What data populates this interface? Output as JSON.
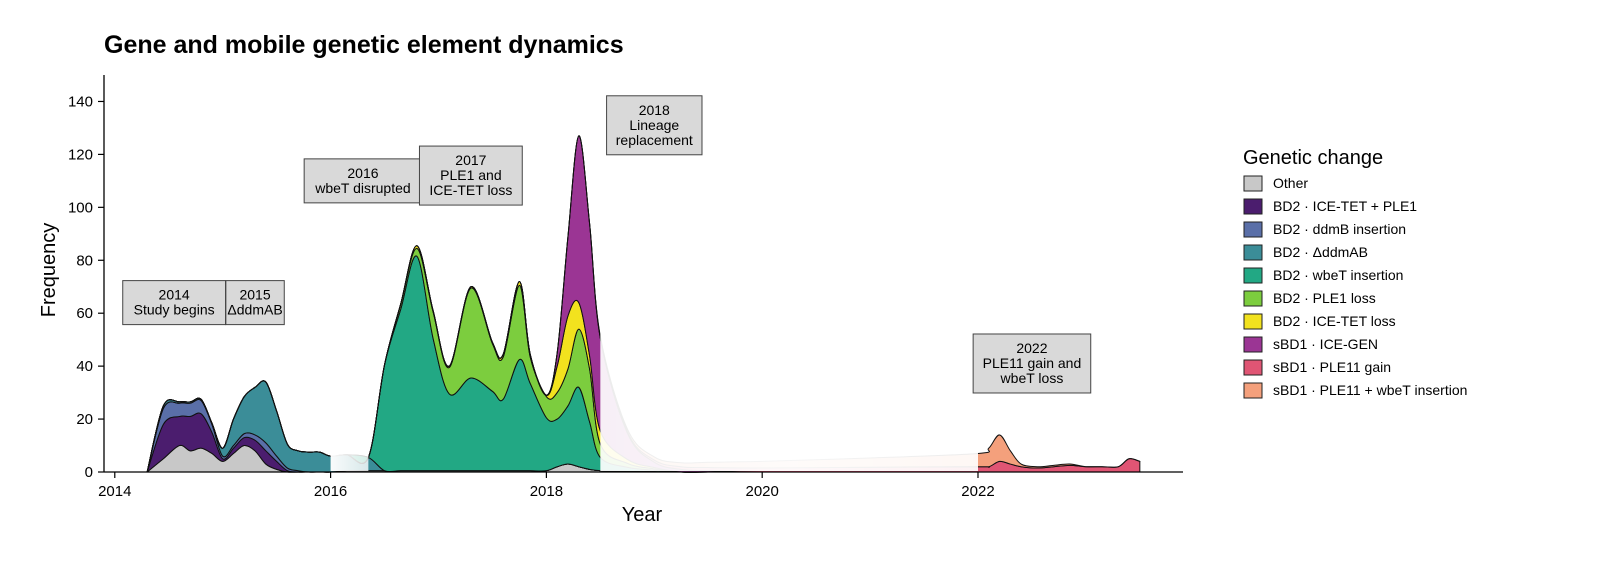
{
  "chart_data": {
    "type": "area",
    "title": "Gene and mobile genetic element dynamics",
    "xlabel": "Year",
    "ylabel": "Frequency",
    "xlim": [
      2013.9,
      2023.9
    ],
    "ylim": [
      0,
      150
    ],
    "x_ticks": [
      2014,
      2016,
      2018,
      2020,
      2022
    ],
    "y_ticks": [
      0,
      20,
      40,
      60,
      80,
      100,
      120,
      140
    ],
    "grid": false,
    "legend_title": "Genetic change",
    "legend_position": "right",
    "stacking": "stacked",
    "x": [
      2014.3,
      2014.45,
      2014.6,
      2014.7,
      2014.8,
      2014.9,
      2015.0,
      2015.1,
      2015.2,
      2015.3,
      2015.4,
      2015.5,
      2015.6,
      2015.7,
      2015.8,
      2015.9,
      2016.0,
      2016.15,
      2016.35,
      2016.5,
      2016.65,
      2016.8,
      2016.95,
      2017.1,
      2017.3,
      2017.5,
      2017.6,
      2017.75,
      2017.85,
      2018.0,
      2018.1,
      2018.2,
      2018.3,
      2018.4,
      2018.5,
      2018.75,
      2019.0,
      2019.25,
      2019.5,
      2020.0,
      2021.0,
      2022.0,
      2022.1,
      2022.2,
      2022.3,
      2022.4,
      2022.55,
      2022.7,
      2022.85,
      2023.0,
      2023.15,
      2023.3,
      2023.4,
      2023.5
    ],
    "series": [
      {
        "name": "Other",
        "color": "#c8c8c8",
        "values": [
          0,
          5,
          10,
          8,
          9,
          7,
          4,
          7,
          10,
          8,
          3,
          1,
          0,
          0,
          0,
          0,
          0,
          0.5,
          0.5,
          0.5,
          0.5,
          0.5,
          0.5,
          0.5,
          0.5,
          0.5,
          0.5,
          0.5,
          0.5,
          0.5,
          2,
          3,
          2,
          1,
          0.5,
          0.3,
          0.2,
          0,
          0,
          0,
          0,
          0,
          0,
          0,
          0,
          0,
          0,
          0,
          0,
          0,
          0,
          0,
          0,
          0
        ]
      },
      {
        "name": "BD2 · ICE-TET + PLE1",
        "color": "#4b1d6e",
        "values": [
          0,
          13,
          11,
          13,
          13,
          8,
          1,
          2,
          3,
          4,
          5,
          3,
          0.5,
          0,
          0,
          0,
          0,
          0,
          0,
          0,
          0,
          0,
          0,
          0,
          0,
          0,
          0,
          0,
          0,
          0,
          0,
          0,
          0,
          0,
          0,
          0,
          0,
          0,
          0,
          0,
          0,
          0,
          0,
          0,
          0,
          0,
          0,
          0,
          0,
          0,
          0,
          0,
          0,
          0
        ]
      },
      {
        "name": "BD2 · ddmB insertion",
        "color": "#5a6fa8",
        "values": [
          0,
          6,
          5,
          5,
          5,
          3,
          1,
          1,
          1.5,
          2,
          3,
          2,
          1,
          0.5,
          0,
          0,
          0,
          0,
          0,
          0,
          0,
          0,
          0,
          0,
          0,
          0,
          0,
          0,
          0,
          0,
          0,
          0,
          0,
          0,
          0,
          0,
          0,
          0,
          0,
          0,
          0,
          0,
          0,
          0,
          0,
          0,
          0,
          0,
          0,
          0,
          0,
          0,
          0,
          0
        ]
      },
      {
        "name": "BD2 · ΔddmAB",
        "color": "#3b8d98",
        "values": [
          0,
          1,
          0.5,
          0.5,
          0.5,
          0.5,
          3,
          10,
          14,
          18,
          23,
          17,
          9,
          7.5,
          7.5,
          7.5,
          6,
          6,
          5,
          0,
          0,
          0,
          0,
          0,
          0,
          0,
          0,
          0,
          0,
          0,
          0,
          0,
          0,
          0,
          0,
          0,
          0,
          0,
          0,
          0,
          0,
          0,
          0,
          0,
          0,
          0,
          0,
          0,
          0,
          0,
          0,
          0,
          0,
          0
        ]
      },
      {
        "name": "BD2 · wbeT insertion",
        "color": "#22a884",
        "values": [
          0,
          0,
          0,
          0,
          0,
          0,
          0,
          0,
          0,
          0,
          0,
          0,
          0,
          0,
          0,
          0,
          0,
          0,
          0,
          40,
          61,
          81,
          50,
          29,
          35,
          30,
          27,
          42,
          33,
          20,
          18,
          22,
          30,
          18,
          5,
          1.5,
          0.5,
          0,
          0,
          0,
          0,
          0,
          0,
          0,
          0,
          0,
          0,
          0,
          0,
          0,
          0,
          0,
          0,
          0
        ]
      },
      {
        "name": "BD2 · PLE1 loss",
        "color": "#7ccd3e",
        "values": [
          0,
          0,
          0,
          0,
          0,
          0,
          0,
          0,
          0,
          0,
          0,
          0,
          0,
          0,
          0,
          0,
          0,
          0,
          0,
          0,
          2,
          3,
          10,
          10,
          34,
          18,
          16,
          28,
          10,
          8,
          10,
          14,
          22,
          20,
          5,
          1.5,
          0.5,
          0,
          0,
          0,
          0,
          0,
          0,
          0,
          0,
          0,
          0,
          0,
          0,
          0,
          0,
          0,
          0,
          0
        ]
      },
      {
        "name": "BD2 · ICE-TET loss",
        "color": "#f2e21e",
        "values": [
          0,
          0,
          0,
          0,
          0,
          0,
          0,
          0,
          0,
          0,
          0,
          0,
          0,
          0,
          0,
          0,
          0,
          0,
          0,
          0,
          0,
          1,
          0.5,
          0.5,
          0.5,
          0.5,
          1,
          1.5,
          1,
          0.5,
          10,
          20,
          10,
          5,
          5,
          1.5,
          0.5,
          0,
          0,
          0,
          0,
          0,
          0,
          0,
          0,
          0,
          0,
          0,
          0,
          0,
          0,
          0,
          0,
          0
        ]
      },
      {
        "name": "sBD1 · ICE-GEN",
        "color": "#9b3594",
        "values": [
          0,
          0,
          0,
          0,
          0,
          0,
          0,
          0,
          0,
          0,
          0,
          0,
          0,
          0,
          0,
          0,
          0,
          0,
          0,
          0,
          0,
          0,
          0,
          0,
          0,
          0,
          0,
          0,
          0,
          0,
          5,
          30,
          63,
          50,
          35,
          10,
          2,
          1,
          0.5,
          0,
          0,
          0,
          0,
          0,
          0,
          0,
          0,
          0,
          0,
          0,
          0,
          0,
          0,
          0
        ]
      },
      {
        "name": "sBD1 · PLE11 gain",
        "color": "#e05574",
        "values": [
          0,
          0,
          0,
          0,
          0,
          0,
          0,
          0,
          0,
          0,
          0,
          0,
          0,
          0,
          0,
          0,
          0,
          0,
          0,
          0,
          0,
          0,
          0,
          0,
          0,
          0,
          0,
          0,
          0,
          0,
          0,
          0,
          0,
          0,
          0.3,
          0.5,
          0.8,
          1,
          1.2,
          1.5,
          1.8,
          2,
          2,
          4,
          3,
          2,
          1.5,
          2,
          2.5,
          2,
          2,
          2,
          5,
          4
        ]
      },
      {
        "name": "sBD1 · PLE11 + wbeT insertion",
        "color": "#f4a07c",
        "values": [
          0,
          0,
          0,
          0,
          0,
          0,
          0,
          0,
          0,
          0,
          0,
          0,
          0,
          0,
          0,
          0,
          0,
          0,
          0,
          0,
          0,
          0,
          0,
          0,
          0,
          0,
          0,
          0,
          0,
          0,
          0,
          0,
          0,
          0,
          0.5,
          1,
          1.2,
          1.5,
          2,
          2.5,
          3.5,
          5,
          7,
          10,
          5,
          1,
          0.5,
          0.5,
          0.5,
          0,
          0,
          0,
          0,
          0
        ]
      }
    ],
    "fade_regions": [
      [
        2016.0,
        2016.35
      ],
      [
        2018.5,
        2022.0
      ]
    ],
    "annotations": [
      {
        "x": 2014.55,
        "y": 64,
        "lines": [
          "2014",
          "Study begins"
        ]
      },
      {
        "x": 2015.3,
        "y": 64,
        "lines": [
          "2015",
          "ΔddmAB"
        ]
      },
      {
        "x": 2016.3,
        "y": 110,
        "lines": [
          "2016",
          "wbeT disrupted"
        ]
      },
      {
        "x": 2017.3,
        "y": 112,
        "lines": [
          "2017",
          "PLE1 and",
          "ICE-TET loss"
        ]
      },
      {
        "x": 2019.0,
        "y": 131,
        "lines": [
          "2018",
          "Lineage",
          "replacement"
        ]
      },
      {
        "x": 2022.5,
        "y": 41,
        "lines": [
          "2022",
          "PLE11 gain and",
          "wbeT loss"
        ]
      }
    ]
  }
}
